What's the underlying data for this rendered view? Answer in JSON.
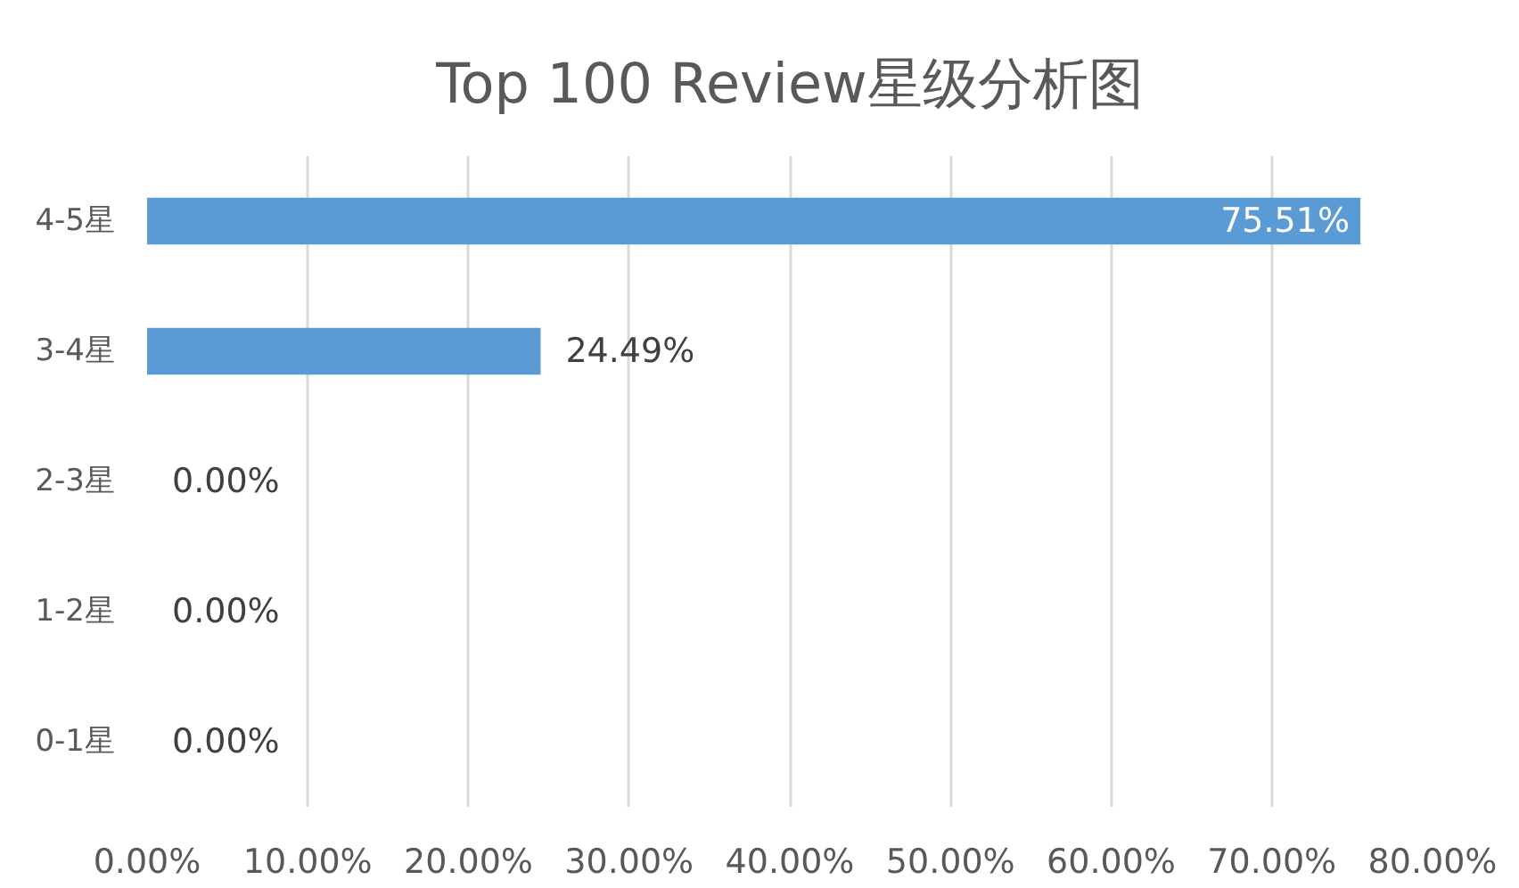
{
  "chart_data": {
    "type": "bar",
    "orientation": "horizontal",
    "title": "Top 100 Review星级分析图",
    "categories": [
      "4-5星",
      "3-4星",
      "2-3星",
      "1-2星",
      "0-1星"
    ],
    "values": [
      75.51,
      24.49,
      0,
      0,
      0
    ],
    "value_labels": [
      "75.51%",
      "24.49%",
      "0.00%",
      "0.00%",
      "0.00%"
    ],
    "color": "#5b9bd5",
    "xlim": [
      0,
      80
    ],
    "xticks": [
      {
        "value": 0,
        "label": "0.00%"
      },
      {
        "value": 10,
        "label": "10.00%"
      },
      {
        "value": 20,
        "label": "20.00%"
      },
      {
        "value": 30,
        "label": "30.00%"
      },
      {
        "value": 40,
        "label": "40.00%"
      },
      {
        "value": 50,
        "label": "50.00%"
      },
      {
        "value": 60,
        "label": "60.00%"
      },
      {
        "value": 70,
        "label": "70.00%"
      },
      {
        "value": 80,
        "label": "80.00%"
      }
    ],
    "grid": "x"
  }
}
